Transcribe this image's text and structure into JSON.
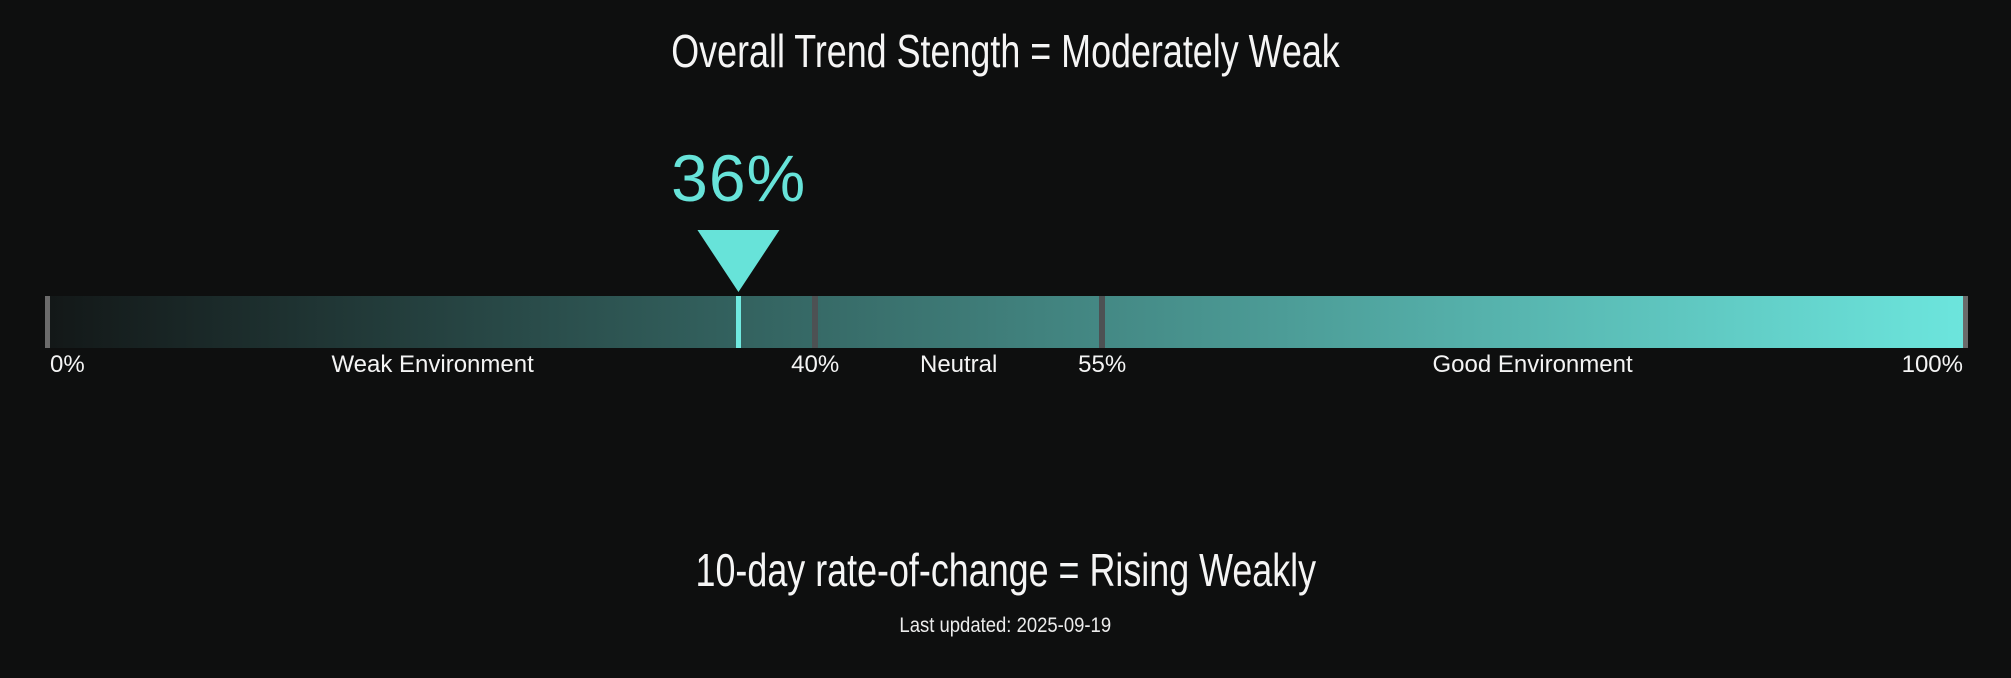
{
  "page": {
    "background": "#0e0f0f",
    "text_color": "#f5f5f5"
  },
  "header": {
    "title": "Overall Trend Stength = Moderately Weak"
  },
  "gauge": {
    "marker": {
      "label": "36%",
      "percent": 36
    },
    "range": {
      "min": 0,
      "max": 100
    },
    "inner_ticks": [
      40,
      55
    ],
    "axis_labels": [
      {
        "text": "0%",
        "percent": 0,
        "align": "left"
      },
      {
        "text": "Weak Environment",
        "percent": 20,
        "align": "center"
      },
      {
        "text": "40%",
        "percent": 40,
        "align": "center"
      },
      {
        "text": "Neutral",
        "percent": 47.5,
        "align": "center"
      },
      {
        "text": "55%",
        "percent": 55,
        "align": "center"
      },
      {
        "text": "Good Environment",
        "percent": 77.5,
        "align": "center"
      },
      {
        "text": "100%",
        "percent": 100,
        "align": "right"
      }
    ],
    "colors": {
      "accent": "#67e3d9",
      "marker_line": "#70e9e0",
      "bar_gradient_start": "#131818",
      "bar_gradient_end": "#6ce5dd",
      "tick_inner": "#4d5153",
      "tick_edge": "#6b6b6b"
    }
  },
  "footer": {
    "subtitle": "10-day rate-of-change = Rising Weakly",
    "last_updated": "Last updated: 2025-09-19"
  },
  "chart_data": {
    "type": "gauge",
    "title": "Overall Trend Stength = Moderately Weak",
    "value": 36,
    "value_label": "36%",
    "range": [
      0,
      100
    ],
    "thresholds": [
      40,
      55
    ],
    "zones": [
      {
        "label": "Weak Environment",
        "from": 0,
        "to": 40
      },
      {
        "label": "Neutral",
        "from": 40,
        "to": 55
      },
      {
        "label": "Good Environment",
        "from": 55,
        "to": 100
      }
    ],
    "axis_tick_labels": [
      "0%",
      "40%",
      "55%",
      "100%"
    ],
    "bar_style": "horizontal gradient from dark to cyan, pointer triangle above at value",
    "subtitle": "10-day rate-of-change = Rising Weakly",
    "last_updated_label": "Last updated: 2025-09-19"
  }
}
